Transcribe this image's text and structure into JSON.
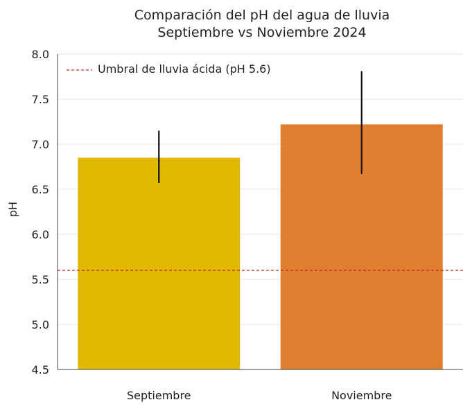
{
  "chart_data": {
    "type": "bar",
    "title": "Comparación del pH del agua de lluvia",
    "subtitle": "Septiembre vs Noviembre 2024",
    "xlabel": "",
    "ylabel": "pH",
    "ylim": [
      4.5,
      8.0
    ],
    "y_ticks": [
      "4.5",
      "5.0",
      "5.5",
      "6.0",
      "6.5",
      "7.0",
      "7.5",
      "8.0"
    ],
    "grid": true,
    "categories": [
      "Septiembre",
      "Noviembre"
    ],
    "values": [
      6.85,
      7.22
    ],
    "error_bars": [
      {
        "low": 6.57,
        "high": 7.15
      },
      {
        "low": 6.67,
        "high": 7.81
      }
    ],
    "bar_colors": [
      "#DFBA00",
      "#E07F30"
    ],
    "reference_line": {
      "y": 5.6,
      "label": "Umbral de lluvia ácida (pH 5.6)",
      "color": "#CC2222",
      "style": "dashed"
    },
    "legend_position": "top-left"
  }
}
